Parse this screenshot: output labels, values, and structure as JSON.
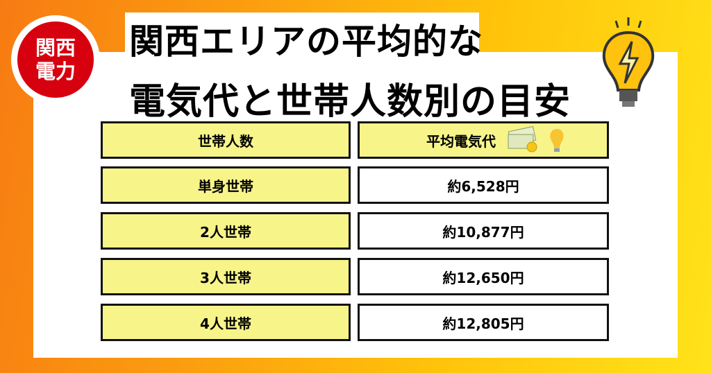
{
  "badge": {
    "line1": "関西",
    "line2": "電力"
  },
  "title": {
    "line1": "関西エリアの平均的な",
    "line2": "電気代と世帯人数別の目安"
  },
  "table": {
    "headers": [
      "世帯人数",
      "平均電気代"
    ],
    "rows": [
      {
        "household": "単身世帯",
        "cost": "約6,528円"
      },
      {
        "household": "2人世帯",
        "cost": "約10,877円"
      },
      {
        "household": "3人世帯",
        "cost": "約12,650円"
      },
      {
        "household": "4人世帯",
        "cost": "約12,805円"
      }
    ]
  },
  "colors": {
    "badge": "#d7000f",
    "header_fill": "#f7f48a",
    "bg_left": "#f77b12",
    "bg_right": "#ffe31a"
  },
  "icons": [
    "lightbulb-lightning-icon",
    "money-icon",
    "lightbulb-icon"
  ]
}
